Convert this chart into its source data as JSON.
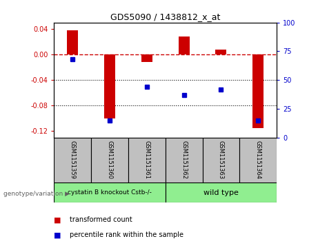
{
  "title": "GDS5090 / 1438812_x_at",
  "samples": [
    "GSM1151359",
    "GSM1151360",
    "GSM1151361",
    "GSM1151362",
    "GSM1151363",
    "GSM1151364"
  ],
  "transformed_count": [
    0.038,
    -0.1,
    -0.012,
    0.028,
    0.008,
    -0.115
  ],
  "percentile_rank": [
    68,
    15,
    44,
    37,
    42,
    15
  ],
  "ylim_left": [
    -0.13,
    0.05
  ],
  "ylim_right": [
    0,
    100
  ],
  "yticks_left": [
    0.04,
    0.0,
    -0.04,
    -0.08,
    -0.12
  ],
  "yticks_right": [
    100,
    75,
    50,
    25,
    0
  ],
  "group1_label": "cystatin B knockout Cstb-/-",
  "group2_label": "wild type",
  "group_color": "#90EE90",
  "bar_color": "#CC0000",
  "dot_color": "#0000CC",
  "legend_label_bar": "transformed count",
  "legend_label_dot": "percentile rank within the sample",
  "genotype_label": "genotype/variation",
  "xlabel_area_color": "#C0C0C0",
  "bar_width": 0.3
}
